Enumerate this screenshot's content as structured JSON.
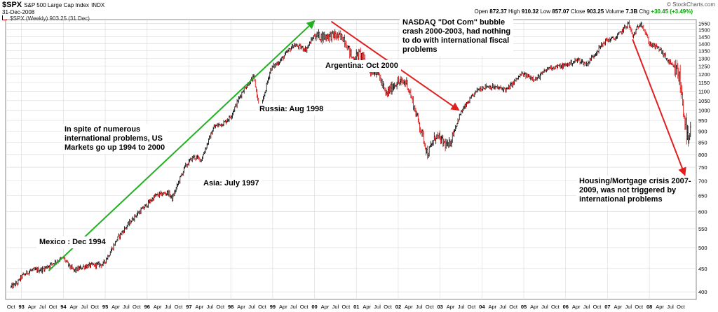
{
  "header": {
    "symbol": "$SPX",
    "index_name": "S&P 500 Large Cap Index",
    "exchange": "INDX",
    "date": "31-Dec-2008",
    "legend": "$SPX (Weekly) 903.25 (31 Dec)",
    "brand": "© StockCharts.com",
    "open_label": "Open",
    "open_value": "872.37",
    "high_label": "High",
    "high_value": "910.32",
    "low_label": "Low",
    "low_value": "857.07",
    "close_label": "Close",
    "close_value": "903.25",
    "volume_label": "Volume",
    "volume_value": "7.3B",
    "chg_label": "Chg",
    "chg_value": "+30.45 (+3.49%)",
    "chg_color": "#00a000"
  },
  "annotations": {
    "mexico": "Mexico :  Dec 1994",
    "spite": "In spite of numerous\ninternational problems, US\nMarkets go up 1994 to 2000",
    "asia": "Asia: July 1997",
    "russia": "Russia: Aug 1998",
    "argentina": "Argentina: Oct 2000",
    "nasdaq": "NASDAQ \"Dot Com\" bubble\ncrash 2000-2003, had nothing\nto do with international fiscal\nproblems",
    "housing": "Housing/Mortgage crisis 2007-\n2009, was not triggered by\ninternational problems"
  },
  "colors": {
    "price_bar_up": "#000000",
    "price_bar_down": "#e00000",
    "up_arrow": "#22b022",
    "down_arrow": "#e02020",
    "grid": "#d8d8d8"
  },
  "chart_data": {
    "type": "line",
    "style": "weekly price bars",
    "title": "$SPX S&P 500 Large Cap Index INDX",
    "series": [
      {
        "name": "$SPX (Weekly)",
        "x": [
          1992.75,
          1992.9,
          1993.0,
          1993.2,
          1993.5,
          1993.8,
          1994.0,
          1994.1,
          1994.25,
          1994.5,
          1994.95,
          1995.1,
          1995.3,
          1995.5,
          1995.7,
          1995.95,
          1996.2,
          1996.5,
          1996.6,
          1996.9,
          1997.1,
          1997.3,
          1997.6,
          1997.85,
          1998.0,
          1998.3,
          1998.55,
          1998.7,
          1998.95,
          1999.2,
          1999.5,
          1999.8,
          2000.0,
          2000.2,
          2000.45,
          2000.7,
          2000.9,
          2001.1,
          2001.3,
          2001.5,
          2001.7,
          2001.95,
          2002.2,
          2002.4,
          2002.55,
          2002.7,
          2002.9,
          2003.2,
          2003.5,
          2003.9,
          2004.1,
          2004.6,
          2004.95,
          2005.3,
          2005.6,
          2005.95,
          2006.3,
          2006.5,
          2006.95,
          2007.2,
          2007.5,
          2007.6,
          2007.8,
          2008.0,
          2008.25,
          2008.45,
          2008.7,
          2008.85,
          2008.93,
          2009.0
        ],
        "y": [
          410,
          418,
          432,
          445,
          448,
          465,
          475,
          460,
          445,
          455,
          460,
          485,
          525,
          555,
          585,
          615,
          650,
          660,
          640,
          750,
          790,
          780,
          920,
          940,
          970,
          1110,
          1180,
          980,
          1230,
          1290,
          1390,
          1360,
          1460,
          1450,
          1460,
          1440,
          1300,
          1330,
          1220,
          1220,
          1080,
          1150,
          1150,
          1000,
          900,
          800,
          880,
          830,
          990,
          1110,
          1130,
          1110,
          1200,
          1170,
          1240,
          1250,
          1290,
          1260,
          1420,
          1440,
          1550,
          1450,
          1560,
          1400,
          1360,
          1280,
          1200,
          950,
          840,
          903
        ]
      }
    ],
    "xlabel": "",
    "ylabel": "",
    "x_ticks": [
      "Oct",
      "93",
      "Apr",
      "Jul",
      "Oct",
      "94",
      "Apr",
      "Jul",
      "Oct",
      "95",
      "Apr",
      "Jul",
      "Oct",
      "96",
      "Apr",
      "Jul",
      "Oct",
      "97",
      "Apr",
      "Jul",
      "Oct",
      "98",
      "Apr",
      "Jul",
      "Oct",
      "99",
      "Apr",
      "Jul",
      "Oct",
      "00",
      "Apr",
      "Jul",
      "Oct",
      "01",
      "Apr",
      "Jul",
      "Oct",
      "02",
      "Apr",
      "Jul",
      "Oct",
      "03",
      "Apr",
      "Jul",
      "Oct",
      "04",
      "Apr",
      "Jul",
      "Oct",
      "05",
      "Apr",
      "Jul",
      "Oct",
      "06",
      "Apr",
      "Jul",
      "Oct",
      "07",
      "Apr",
      "Jul",
      "Oct",
      "08",
      "Apr",
      "Jul",
      "Oct"
    ],
    "y_ticks": [
      400,
      450,
      500,
      550,
      600,
      650,
      700,
      750,
      800,
      850,
      900,
      950,
      1000,
      1050,
      1100,
      1150,
      1200,
      1250,
      1300,
      1350,
      1400,
      1450,
      1500,
      1550
    ],
    "xlim": [
      1992.62,
      2009.12
    ],
    "ylim": [
      385,
      1580
    ],
    "yscale": "log",
    "grid": true,
    "legend": "top-left",
    "arrows": [
      {
        "color": "up",
        "from": [
          1993.65,
          445
        ],
        "to": [
          2000.0,
          1570
        ]
      },
      {
        "color": "down",
        "from": [
          2000.4,
          1565
        ],
        "to": [
          2003.45,
          1000
        ]
      },
      {
        "color": "down",
        "from": [
          2007.6,
          1430
        ],
        "to": [
          2008.85,
          720
        ]
      }
    ]
  }
}
